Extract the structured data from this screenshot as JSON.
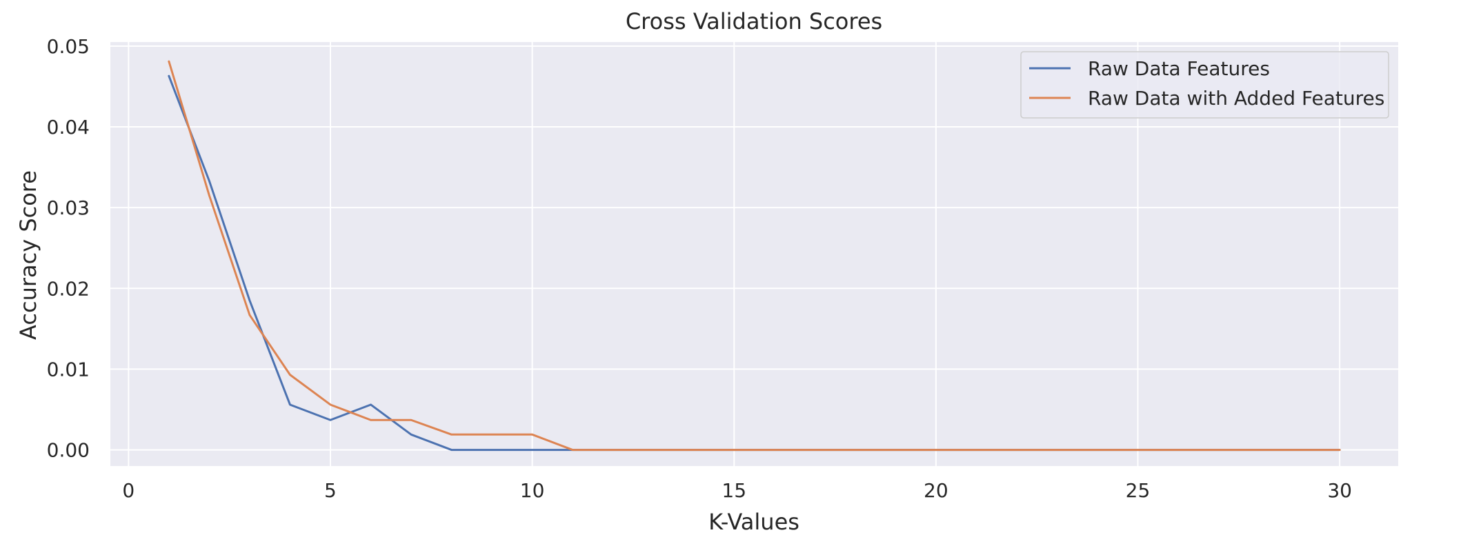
{
  "chart_data": {
    "type": "line",
    "title": "Cross Validation Scores",
    "xlabel": "K-Values",
    "ylabel": "Accuracy Score",
    "xlim": [
      -0.45,
      31.45
    ],
    "ylim": [
      -0.002,
      0.0505
    ],
    "xticks": [
      0,
      5,
      10,
      15,
      20,
      25,
      30
    ],
    "yticks": [
      0.0,
      0.01,
      0.02,
      0.03,
      0.04,
      0.05
    ],
    "ytick_labels": [
      "0.00",
      "0.01",
      "0.02",
      "0.03",
      "0.04",
      "0.05"
    ],
    "grid": true,
    "legend_position": "top-right",
    "x": [
      1,
      2,
      3,
      4,
      5,
      6,
      7,
      8,
      9,
      10,
      11,
      12,
      13,
      14,
      15,
      16,
      17,
      18,
      19,
      20,
      21,
      22,
      23,
      24,
      25,
      26,
      27,
      28,
      29,
      30
    ],
    "series": [
      {
        "name": "Raw Data Features",
        "color": "#4c72b0",
        "values": [
          0.0463,
          0.0333,
          0.0185,
          0.0056,
          0.0037,
          0.0056,
          0.0019,
          0.0,
          0.0,
          0.0,
          0.0,
          0.0,
          0.0,
          0.0,
          0.0,
          0.0,
          0.0,
          0.0,
          0.0,
          0.0,
          0.0,
          0.0,
          0.0,
          0.0,
          0.0,
          0.0,
          0.0,
          0.0,
          0.0,
          0.0
        ]
      },
      {
        "name": "Raw Data with Added Features",
        "color": "#dd8452",
        "values": [
          0.0481,
          0.0315,
          0.0167,
          0.0093,
          0.0056,
          0.0037,
          0.0037,
          0.0019,
          0.0019,
          0.0019,
          0.0,
          0.0,
          0.0,
          0.0,
          0.0,
          0.0,
          0.0,
          0.0,
          0.0,
          0.0,
          0.0,
          0.0,
          0.0,
          0.0,
          0.0,
          0.0,
          0.0,
          0.0,
          0.0,
          0.0
        ]
      }
    ]
  },
  "colors": {
    "plot_background": "#eaeaf2",
    "grid": "#ffffff",
    "text": "#262626"
  }
}
